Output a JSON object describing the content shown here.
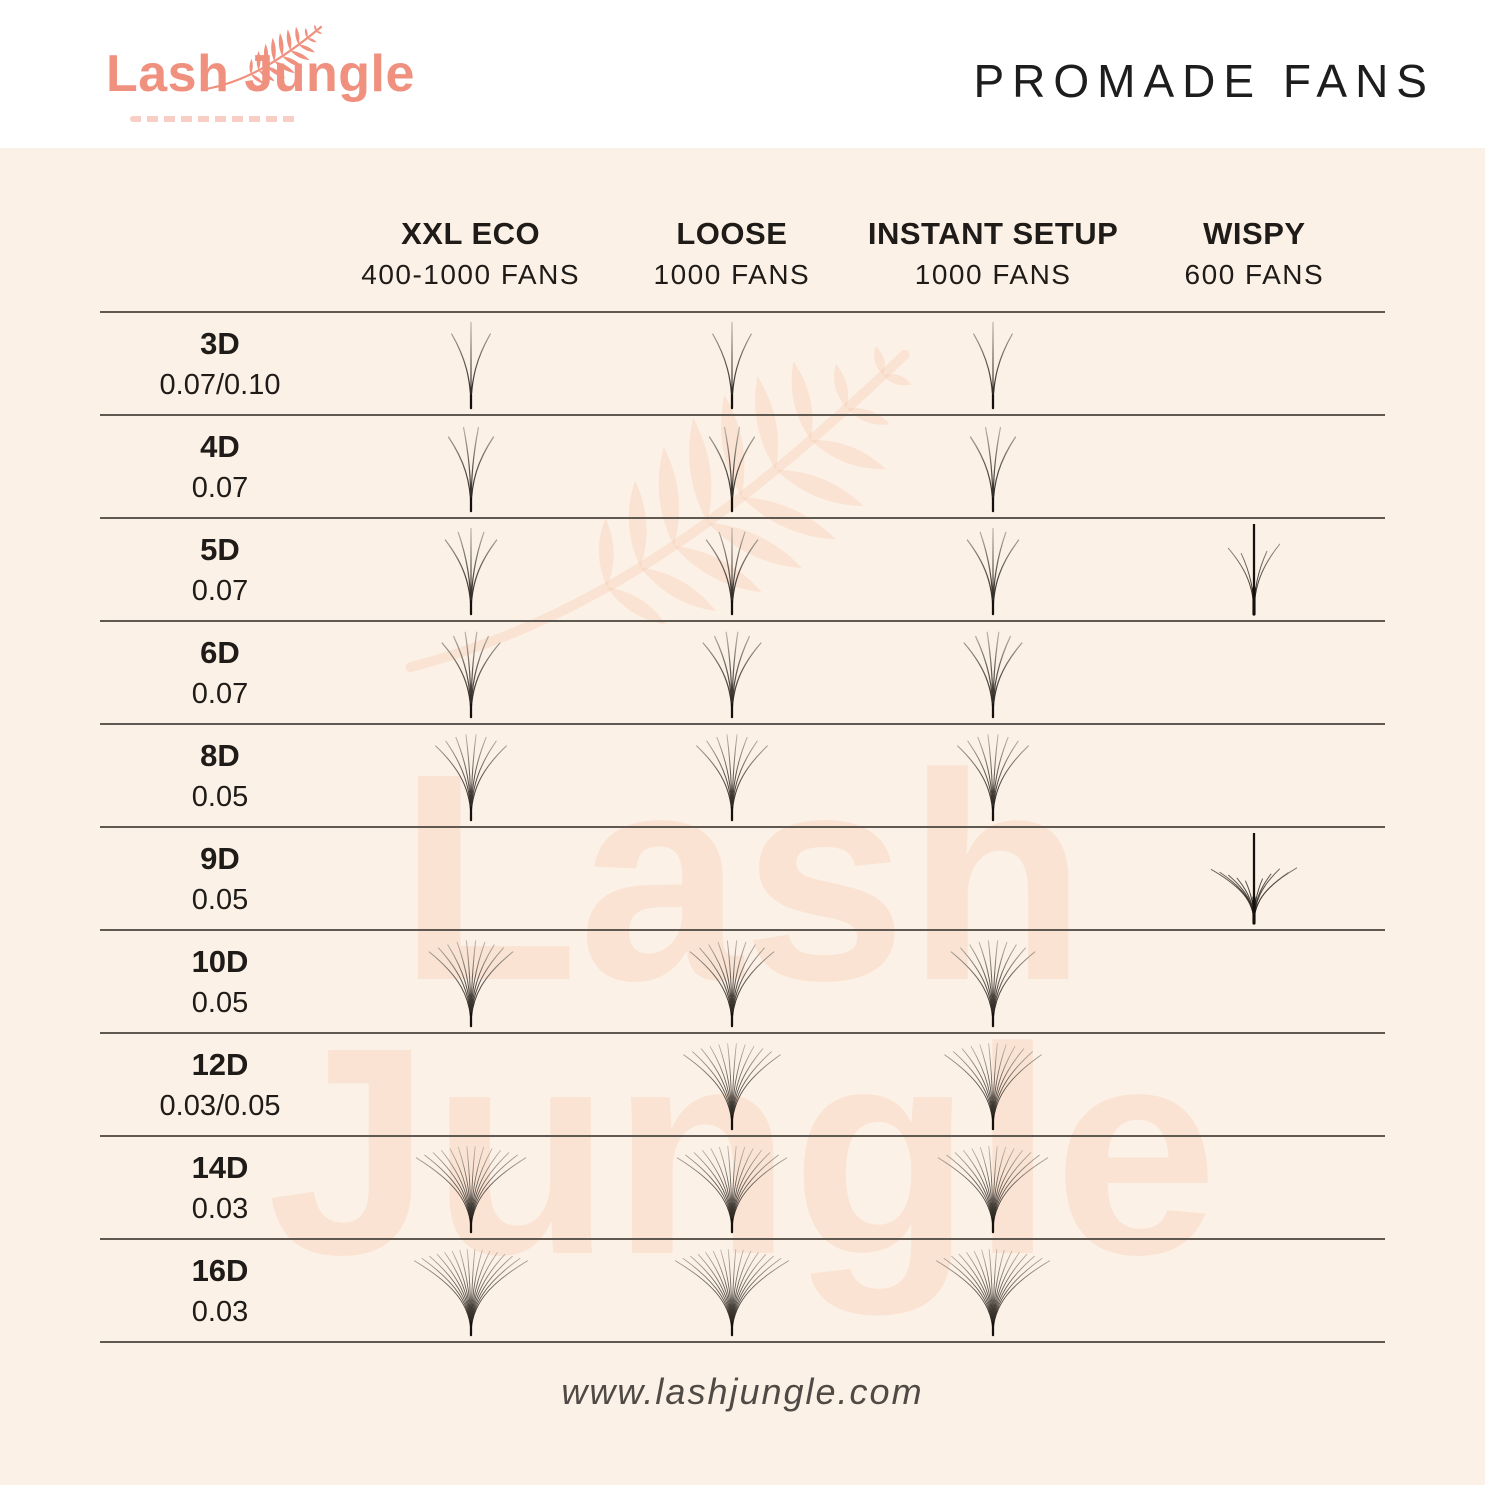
{
  "header": {
    "logo_text": "Lash Jungle",
    "title": "PROMADE FANS"
  },
  "chart_data": {
    "type": "table",
    "title": "PROMADE FANS",
    "columns": [
      {
        "name": "XXL ECO",
        "fans": "400-1000 FANS"
      },
      {
        "name": "LOOSE",
        "fans": "1000 FANS"
      },
      {
        "name": "INSTANT SETUP",
        "fans": "1000 FANS"
      },
      {
        "name": "WISPY",
        "fans": "600 FANS"
      }
    ],
    "rows": [
      {
        "dimension": "3D",
        "thickness": "0.07/0.10",
        "cells": [
          {
            "strands": 3
          },
          {
            "strands": 3
          },
          {
            "strands": 3
          },
          null
        ]
      },
      {
        "dimension": "4D",
        "thickness": "0.07",
        "cells": [
          {
            "strands": 4
          },
          {
            "strands": 4
          },
          {
            "strands": 4
          },
          null
        ]
      },
      {
        "dimension": "5D",
        "thickness": "0.07",
        "cells": [
          {
            "strands": 5
          },
          {
            "strands": 5
          },
          {
            "strands": 5
          },
          {
            "strands": 5,
            "style": "wispy"
          }
        ]
      },
      {
        "dimension": "6D",
        "thickness": "0.07",
        "cells": [
          {
            "strands": 6
          },
          {
            "strands": 6
          },
          {
            "strands": 6
          },
          null
        ]
      },
      {
        "dimension": "8D",
        "thickness": "0.05",
        "cells": [
          {
            "strands": 8
          },
          {
            "strands": 8
          },
          {
            "strands": 8
          },
          null
        ]
      },
      {
        "dimension": "9D",
        "thickness": "0.05",
        "cells": [
          null,
          null,
          null,
          {
            "strands": 9,
            "style": "wispy"
          }
        ]
      },
      {
        "dimension": "10D",
        "thickness": "0.05",
        "cells": [
          {
            "strands": 10
          },
          {
            "strands": 10
          },
          {
            "strands": 10
          },
          null
        ]
      },
      {
        "dimension": "12D",
        "thickness": "0.03/0.05",
        "cells": [
          null,
          {
            "strands": 12
          },
          {
            "strands": 12
          },
          null
        ]
      },
      {
        "dimension": "14D",
        "thickness": "0.03",
        "cells": [
          {
            "strands": 14
          },
          {
            "strands": 14
          },
          {
            "strands": 14
          },
          null
        ]
      },
      {
        "dimension": "16D",
        "thickness": "0.03",
        "cells": [
          {
            "strands": 16
          },
          {
            "strands": 16
          },
          {
            "strands": 16
          },
          null
        ]
      }
    ]
  },
  "watermark": {
    "line1": "Lash",
    "line2": "Jungle"
  },
  "footer": {
    "url": "www.lashjungle.com"
  },
  "colors": {
    "brand_coral": "#F0917F",
    "background_cream": "#FCF1E6",
    "header_white": "#FFFFFF",
    "row_line": "#5F5952",
    "text_dark": "#1E1B18",
    "footer_text": "#4F4A45",
    "watermark_pink": "rgba(245,195,168,0.30)",
    "lash_dark": "#15100C"
  }
}
